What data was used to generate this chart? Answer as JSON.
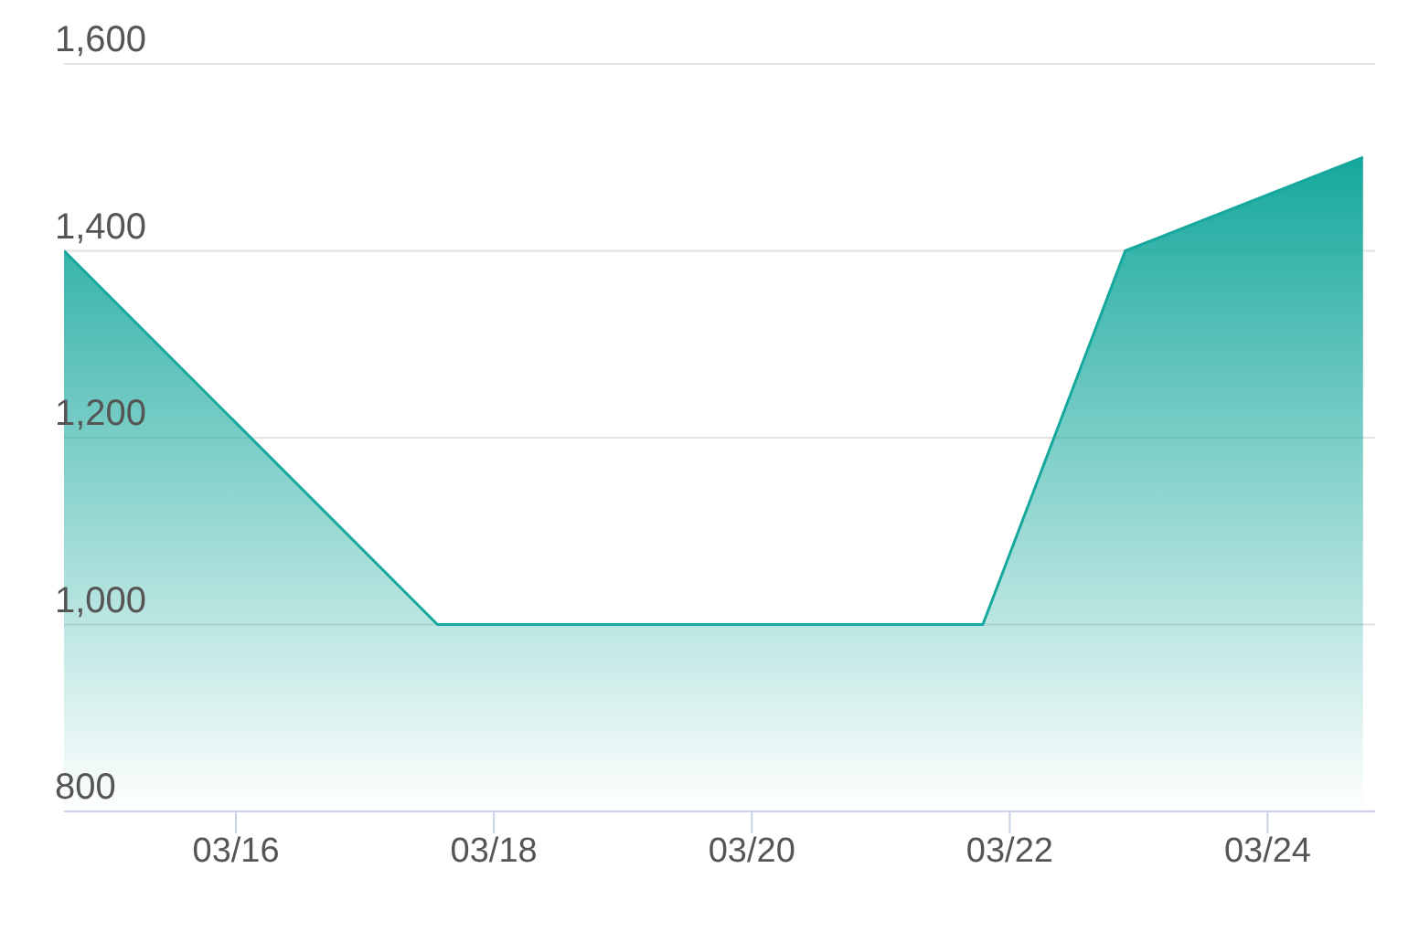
{
  "chart_data": {
    "type": "area",
    "x": [
      "--03-14T16:00",
      "--03-17T13:30",
      "--03-21T19:00",
      "--03-22T21:30",
      "--03-24T17:45"
    ],
    "values": [
      1400,
      1000,
      1000,
      1400,
      1500
    ],
    "color": "#16a89c",
    "xlim": [
      "--03-14T16:00",
      "--03-24T20:00"
    ],
    "xticks": [
      {
        "value": "--03-16",
        "label": "03/16"
      },
      {
        "value": "--03-18",
        "label": "03/18"
      },
      {
        "value": "--03-20",
        "label": "03/20"
      },
      {
        "value": "--03-22",
        "label": "03/22"
      },
      {
        "value": "--03-24",
        "label": "03/24"
      }
    ],
    "ylim": [
      800,
      1600
    ],
    "yticks": [
      {
        "value": 800,
        "label": "800"
      },
      {
        "value": 1000,
        "label": "1,000"
      },
      {
        "value": 1200,
        "label": "1,200"
      },
      {
        "value": 1400,
        "label": "1,400"
      },
      {
        "value": 1600,
        "label": "1,600"
      }
    ],
    "grid": "y"
  }
}
